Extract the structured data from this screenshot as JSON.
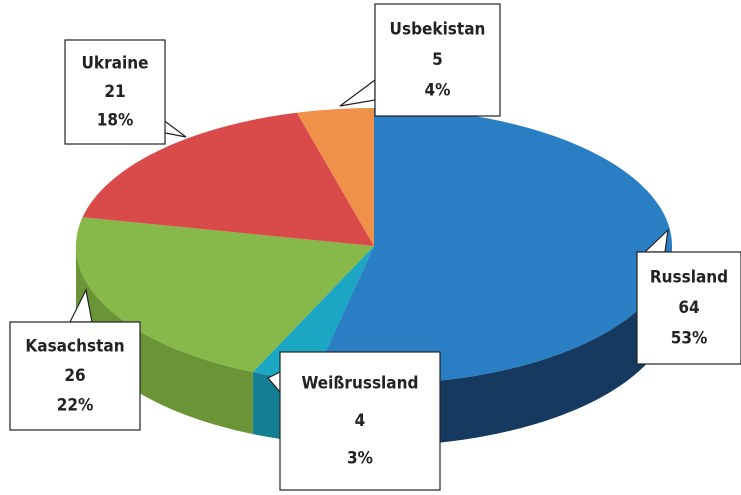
{
  "chart_data": {
    "type": "pie3d",
    "categories": [
      "Russland",
      "Weißrussland",
      "Kasachstan",
      "Ukraine",
      "Usbekistan"
    ],
    "values": [
      64,
      4,
      26,
      21,
      5
    ],
    "percent_labels": [
      "53%",
      "3%",
      "22%",
      "18%",
      "4%"
    ],
    "colors": [
      "#2a7fc4",
      "#1ba6c4",
      "#86b94a",
      "#d94a4a",
      "#f0914a"
    ],
    "side_colors": [
      "#15395f",
      "#147f94",
      "#6b9437",
      "#a83636",
      "#c06f32"
    ]
  }
}
